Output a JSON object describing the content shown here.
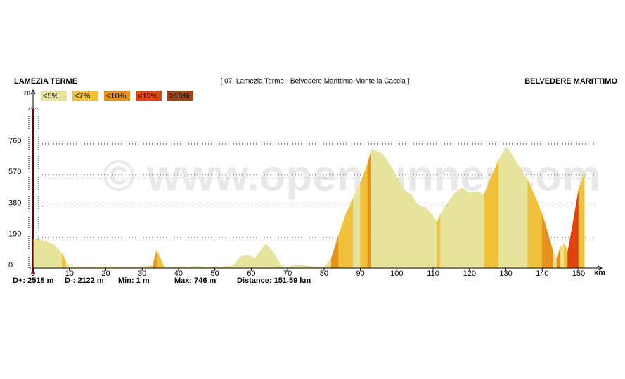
{
  "chart_data": {
    "type": "elevation-area",
    "start_label": "LAMEZIA TERME",
    "title": "[ 07. Lamezia Terme - Belvedere Marittimo-Monte la Caccia ]",
    "end_label": "BELVEDERE MARITTIMO",
    "y_unit": "m",
    "x_unit": "km",
    "watermark": "© www.openrunner.com",
    "legend": [
      {
        "label": "<5%",
        "max": 5,
        "color": "#e6e39c"
      },
      {
        "label": "<7%",
        "max": 7,
        "color": "#f0c23c"
      },
      {
        "label": "<10%",
        "max": 10,
        "color": "#e8921e"
      },
      {
        "label": "<15%",
        "max": 15,
        "color": "#e0440e"
      },
      {
        "label": ">15%",
        "max": null,
        "color": "#9c4416"
      }
    ],
    "stats": [
      "D+: 2518 m",
      "D-: 2122 m",
      "Min: 1 m",
      "Max: 746 m",
      "Distance: 151.59 km"
    ],
    "x": [
      0,
      2,
      4,
      6,
      8,
      9,
      10,
      15,
      20,
      25,
      30,
      33,
      34,
      35,
      36,
      40,
      45,
      50,
      55,
      57,
      59,
      61,
      63,
      64,
      66,
      68,
      70,
      72,
      75,
      78,
      80,
      82,
      84,
      86,
      88,
      90,
      92,
      93,
      94,
      96,
      98,
      100,
      102,
      104,
      106,
      108,
      110,
      111,
      112,
      114,
      116,
      118,
      120,
      122,
      124,
      126,
      128,
      130,
      131,
      132,
      134,
      136,
      138,
      140,
      142,
      143,
      144,
      145,
      146,
      147,
      148,
      150,
      151.59
    ],
    "values": [
      180,
      175,
      160,
      140,
      90,
      40,
      10,
      5,
      8,
      5,
      5,
      20,
      110,
      60,
      5,
      5,
      10,
      5,
      15,
      70,
      80,
      60,
      120,
      150,
      100,
      20,
      5,
      20,
      15,
      5,
      5,
      60,
      200,
      330,
      430,
      520,
      640,
      720,
      720,
      700,
      640,
      560,
      480,
      450,
      380,
      370,
      320,
      280,
      330,
      400,
      460,
      490,
      460,
      470,
      450,
      560,
      660,
      740,
      720,
      680,
      610,
      540,
      440,
      330,
      180,
      100,
      60,
      130,
      150,
      100,
      220,
      480,
      580
    ],
    "xlim": [
      0,
      150
    ],
    "xticks": [
      0,
      10,
      20,
      30,
      40,
      50,
      60,
      70,
      80,
      90,
      100,
      110,
      120,
      130,
      140,
      150
    ],
    "ylim": [
      0,
      975
    ],
    "yticks": [
      0,
      190,
      380,
      570,
      760
    ],
    "grid": true
  }
}
